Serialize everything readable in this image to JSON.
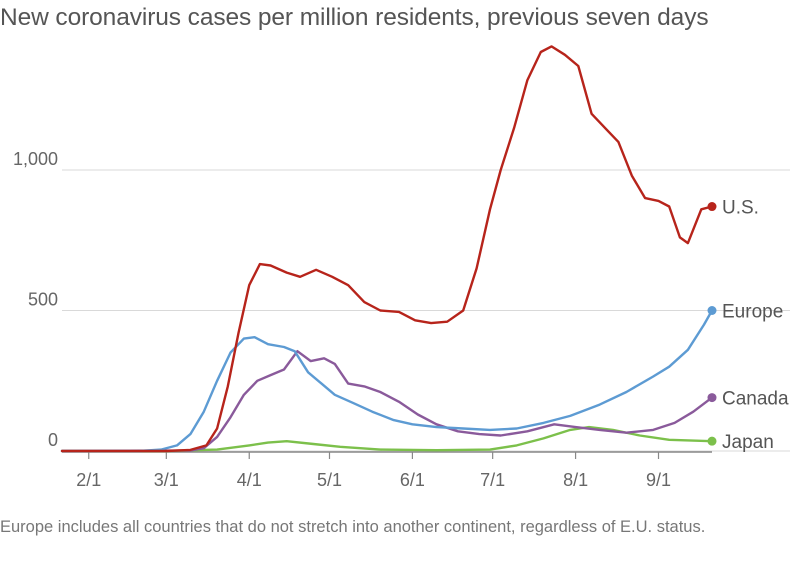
{
  "chart_data": {
    "type": "line",
    "title": "New coronavirus cases per million residents, previous seven days",
    "note": "Europe includes all countries that do not stretch into another continent, regardless of E.U. status.",
    "xlabel": "",
    "ylabel": "",
    "x_ticks": [
      "2/1",
      "3/1",
      "4/1",
      "5/1",
      "6/1",
      "7/1",
      "8/1",
      "9/1"
    ],
    "y_ticks": [
      0,
      500,
      1000
    ],
    "y_tick_labels": [
      "0",
      "500",
      "1,000"
    ],
    "ylim": [
      0,
      1450
    ],
    "xlim": [
      "2020-01-22",
      "2020-09-21"
    ],
    "grid": "horizontal",
    "series": [
      {
        "name": "U.S.",
        "color": "#b7241b",
        "points": [
          [
            "2020-01-22",
            0
          ],
          [
            "2020-03-01",
            0
          ],
          [
            "2020-03-10",
            4
          ],
          [
            "2020-03-16",
            20
          ],
          [
            "2020-03-20",
            80
          ],
          [
            "2020-03-24",
            230
          ],
          [
            "2020-03-28",
            420
          ],
          [
            "2020-04-01",
            590
          ],
          [
            "2020-04-05",
            665
          ],
          [
            "2020-04-09",
            660
          ],
          [
            "2020-04-15",
            635
          ],
          [
            "2020-04-20",
            620
          ],
          [
            "2020-04-26",
            645
          ],
          [
            "2020-05-02",
            620
          ],
          [
            "2020-05-08",
            590
          ],
          [
            "2020-05-14",
            530
          ],
          [
            "2020-05-20",
            500
          ],
          [
            "2020-05-27",
            495
          ],
          [
            "2020-06-02",
            465
          ],
          [
            "2020-06-08",
            455
          ],
          [
            "2020-06-14",
            460
          ],
          [
            "2020-06-20",
            500
          ],
          [
            "2020-06-25",
            650
          ],
          [
            "2020-06-30",
            860
          ],
          [
            "2020-07-04",
            1000
          ],
          [
            "2020-07-09",
            1150
          ],
          [
            "2020-07-14",
            1320
          ],
          [
            "2020-07-19",
            1420
          ],
          [
            "2020-07-23",
            1440
          ],
          [
            "2020-07-28",
            1410
          ],
          [
            "2020-08-02",
            1370
          ],
          [
            "2020-08-07",
            1200
          ],
          [
            "2020-08-12",
            1150
          ],
          [
            "2020-08-17",
            1100
          ],
          [
            "2020-08-22",
            980
          ],
          [
            "2020-08-27",
            900
          ],
          [
            "2020-09-01",
            890
          ],
          [
            "2020-09-05",
            870
          ],
          [
            "2020-09-09",
            760
          ],
          [
            "2020-09-12",
            740
          ],
          [
            "2020-09-17",
            860
          ],
          [
            "2020-09-21",
            870
          ]
        ]
      },
      {
        "name": "Europe",
        "color": "#5d9bd3",
        "points": [
          [
            "2020-01-22",
            0
          ],
          [
            "2020-02-20",
            0
          ],
          [
            "2020-02-28",
            5
          ],
          [
            "2020-03-05",
            20
          ],
          [
            "2020-03-10",
            60
          ],
          [
            "2020-03-15",
            140
          ],
          [
            "2020-03-20",
            250
          ],
          [
            "2020-03-25",
            350
          ],
          [
            "2020-03-30",
            400
          ],
          [
            "2020-04-03",
            405
          ],
          [
            "2020-04-08",
            380
          ],
          [
            "2020-04-14",
            370
          ],
          [
            "2020-04-18",
            355
          ],
          [
            "2020-04-23",
            280
          ],
          [
            "2020-04-28",
            240
          ],
          [
            "2020-05-03",
            200
          ],
          [
            "2020-05-10",
            170
          ],
          [
            "2020-05-17",
            140
          ],
          [
            "2020-05-25",
            110
          ],
          [
            "2020-06-01",
            95
          ],
          [
            "2020-06-10",
            85
          ],
          [
            "2020-06-20",
            80
          ],
          [
            "2020-06-30",
            75
          ],
          [
            "2020-07-10",
            80
          ],
          [
            "2020-07-20",
            100
          ],
          [
            "2020-07-30",
            125
          ],
          [
            "2020-08-10",
            165
          ],
          [
            "2020-08-20",
            210
          ],
          [
            "2020-08-30",
            265
          ],
          [
            "2020-09-05",
            300
          ],
          [
            "2020-09-12",
            360
          ],
          [
            "2020-09-18",
            450
          ],
          [
            "2020-09-21",
            500
          ]
        ]
      },
      {
        "name": "Canada",
        "color": "#8a5a9b",
        "points": [
          [
            "2020-01-22",
            0
          ],
          [
            "2020-03-10",
            2
          ],
          [
            "2020-03-15",
            10
          ],
          [
            "2020-03-20",
            50
          ],
          [
            "2020-03-25",
            120
          ],
          [
            "2020-03-30",
            200
          ],
          [
            "2020-04-04",
            250
          ],
          [
            "2020-04-09",
            270
          ],
          [
            "2020-04-14",
            290
          ],
          [
            "2020-04-19",
            355
          ],
          [
            "2020-04-24",
            320
          ],
          [
            "2020-04-29",
            330
          ],
          [
            "2020-05-03",
            310
          ],
          [
            "2020-05-08",
            240
          ],
          [
            "2020-05-14",
            230
          ],
          [
            "2020-05-20",
            210
          ],
          [
            "2020-05-27",
            175
          ],
          [
            "2020-06-03",
            130
          ],
          [
            "2020-06-10",
            95
          ],
          [
            "2020-06-18",
            70
          ],
          [
            "2020-06-26",
            60
          ],
          [
            "2020-07-04",
            55
          ],
          [
            "2020-07-14",
            70
          ],
          [
            "2020-07-24",
            95
          ],
          [
            "2020-08-01",
            85
          ],
          [
            "2020-08-10",
            75
          ],
          [
            "2020-08-20",
            65
          ],
          [
            "2020-08-30",
            75
          ],
          [
            "2020-09-07",
            100
          ],
          [
            "2020-09-14",
            140
          ],
          [
            "2020-09-21",
            190
          ]
        ]
      },
      {
        "name": "Japan",
        "color": "#7cc04b",
        "points": [
          [
            "2020-01-22",
            0
          ],
          [
            "2020-03-01",
            0
          ],
          [
            "2020-03-20",
            5
          ],
          [
            "2020-04-01",
            20
          ],
          [
            "2020-04-08",
            30
          ],
          [
            "2020-04-15",
            35
          ],
          [
            "2020-04-25",
            25
          ],
          [
            "2020-05-05",
            15
          ],
          [
            "2020-05-20",
            5
          ],
          [
            "2020-06-10",
            3
          ],
          [
            "2020-06-30",
            5
          ],
          [
            "2020-07-10",
            20
          ],
          [
            "2020-07-20",
            45
          ],
          [
            "2020-07-30",
            75
          ],
          [
            "2020-08-06",
            85
          ],
          [
            "2020-08-15",
            75
          ],
          [
            "2020-08-25",
            55
          ],
          [
            "2020-09-05",
            40
          ],
          [
            "2020-09-21",
            35
          ]
        ]
      }
    ]
  }
}
